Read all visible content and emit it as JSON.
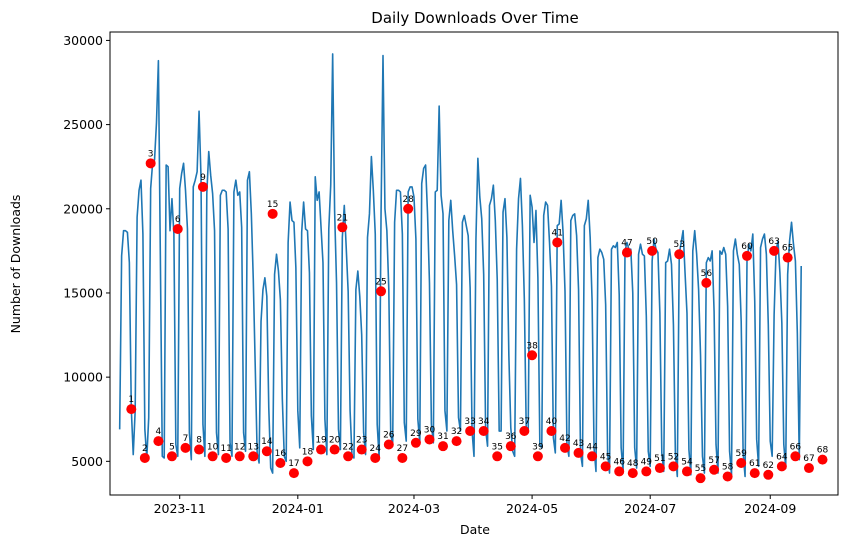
{
  "chart_data": {
    "type": "line",
    "title": "Daily Downloads Over Time",
    "xlabel": "Date",
    "ylabel": "Number of Downloads",
    "ylim": [
      3000,
      30500
    ],
    "xlim": [
      "2023-09-26",
      "2024-10-06"
    ],
    "y_ticks": [
      5000,
      10000,
      15000,
      20000,
      25000,
      30000
    ],
    "x_ticks": [
      "2023-11",
      "2024-01",
      "2024-03",
      "2024-05",
      "2024-07",
      "2024-09"
    ],
    "x_tick_dates": [
      "2023-11-01",
      "2024-01-01",
      "2024-03-01",
      "2024-05-01",
      "2024-07-01",
      "2024-09-01"
    ],
    "grid": false,
    "line_color": "#1f77b4",
    "marker_color": "#ff0000",
    "series": [
      {
        "x_start": "2023-10-01",
        "values": [
          6900,
          17200,
          18700,
          18700,
          18600,
          16800,
          8100,
          5400,
          8000,
          19500,
          21100,
          21700,
          18500,
          6900,
          5200,
          7600,
          21200,
          22700,
          22900,
          25100,
          28800,
          17200,
          5300,
          5200,
          22600,
          22500,
          18700,
          20600,
          18500,
          6000,
          5300,
          21200,
          22100,
          22700,
          21100,
          18800,
          6700,
          5100,
          21300,
          21700,
          22200,
          25800,
          21900,
          7200,
          5300,
          20900,
          23400,
          22000,
          20900,
          18700,
          6700,
          5400,
          20800,
          21100,
          21100,
          21000,
          18800,
          6100,
          5300,
          21000,
          21700,
          20800,
          21000,
          18900,
          6700,
          5600,
          21700,
          22200,
          19700,
          15800,
          10700,
          5500,
          4900,
          13300,
          15200,
          15900,
          14800,
          8200,
          4600,
          4300,
          16100,
          17300,
          16300,
          14600,
          8700,
          5300,
          5000,
          18000,
          20400,
          19300,
          19200,
          16500,
          8000,
          5800,
          18600,
          20400,
          18800,
          18700,
          16200,
          7700,
          5700,
          21900,
          20500,
          21000,
          18900,
          16800,
          7500,
          5400,
          18800,
          21400,
          29200,
          19900,
          15600,
          6900,
          5700,
          18300,
          20200,
          17700,
          15100,
          8000,
          5300,
          5200,
          15200,
          16300,
          14800,
          12500,
          6700,
          5400,
          18300,
          19700,
          23100,
          21100,
          18500,
          7200,
          5200,
          19800,
          29100,
          20000,
          18700,
          15200,
          6600,
          6000,
          19200,
          21100,
          21100,
          21000,
          18500,
          7300,
          6200,
          21000,
          21300,
          21300,
          20700,
          18200,
          7500,
          6100,
          21500,
          22400,
          22600,
          19700,
          15600,
          7200,
          6100,
          21000,
          21100,
          26100,
          20800,
          19700,
          8000,
          6800,
          19300,
          20500,
          18700,
          17200,
          15500,
          7600,
          6800,
          19200,
          19600,
          19000,
          18400,
          15300,
          6800,
          5300,
          18200,
          23000,
          20700,
          19400,
          16100,
          6900,
          5900,
          20200,
          20600,
          21400,
          19300,
          15800,
          6800,
          6800,
          19800,
          20600,
          18300,
          11300,
          7000,
          5600,
          5300,
          17600,
          20600,
          21800,
          19000,
          14600,
          6700,
          6800,
          20800,
          20100,
          18000,
          19900,
          15900,
          6000,
          5800,
          19600,
          20400,
          20200,
          18000,
          15400,
          6400,
          5500,
          19000,
          19100,
          20500,
          18600,
          15100,
          6000,
          5300,
          19300,
          19600,
          19700,
          18400,
          15200,
          5500,
          4700,
          19000,
          19400,
          20500,
          18300,
          14500,
          5800,
          4400,
          17100,
          17600,
          17400,
          17000,
          14300,
          5500,
          4300,
          17600,
          17800,
          17700,
          18000,
          14900,
          5800,
          4400,
          17500,
          18000,
          17600,
          17600,
          15000,
          5800,
          4600,
          17300,
          17900,
          17300,
          17200,
          13600,
          5600,
          4700,
          16900,
          18200,
          17600,
          17400,
          13800,
          5500,
          4400,
          16800,
          16900,
          17600,
          16700,
          13100,
          5500,
          4100,
          17300,
          18000,
          18700,
          16200,
          13800,
          5700,
          4200,
          17500,
          18700,
          17300,
          15200,
          11300,
          5300,
          4300,
          16800,
          17100,
          16900,
          17500,
          13900,
          6000,
          4300,
          17500,
          17300,
          17700,
          17300,
          14200,
          5600,
          4200,
          17500,
          18200,
          17300,
          16700,
          13300,
          5500,
          4100,
          16900,
          17900,
          17500,
          18500,
          14500,
          6300,
          4700,
          17700,
          18200,
          18500,
          17300,
          13100,
          6200,
          5300,
          13700,
          17500,
          18100,
          16200,
          13200,
          6000,
          4600,
          16100,
          18100,
          19200,
          17900,
          16900,
          12600,
          5100,
          16600
        ]
      }
    ],
    "annotated_points": [
      {
        "label": "1",
        "x": "2023-10-07",
        "y": 8100
      },
      {
        "label": "2",
        "x": "2023-10-14",
        "y": 5200
      },
      {
        "label": "3",
        "x": "2023-10-17",
        "y": 22700
      },
      {
        "label": "4",
        "x": "2023-10-21",
        "y": 6200
      },
      {
        "label": "5",
        "x": "2023-10-28",
        "y": 5300
      },
      {
        "label": "6",
        "x": "2023-10-31",
        "y": 18800
      },
      {
        "label": "7",
        "x": "2023-11-04",
        "y": 5800
      },
      {
        "label": "8",
        "x": "2023-11-11",
        "y": 5700
      },
      {
        "label": "9",
        "x": "2023-11-13",
        "y": 21300
      },
      {
        "label": "10",
        "x": "2023-11-18",
        "y": 5300
      },
      {
        "label": "11",
        "x": "2023-11-25",
        "y": 5200
      },
      {
        "label": "12",
        "x": "2023-12-02",
        "y": 5300
      },
      {
        "label": "13",
        "x": "2023-12-09",
        "y": 5300
      },
      {
        "label": "14",
        "x": "2023-12-16",
        "y": 5600
      },
      {
        "label": "15",
        "x": "2023-12-19",
        "y": 19700
      },
      {
        "label": "16",
        "x": "2023-12-23",
        "y": 4900
      },
      {
        "label": "17",
        "x": "2023-12-30",
        "y": 4300
      },
      {
        "label": "18",
        "x": "2024-01-06",
        "y": 5000
      },
      {
        "label": "19",
        "x": "2024-01-13",
        "y": 5700
      },
      {
        "label": "20",
        "x": "2024-01-20",
        "y": 5700
      },
      {
        "label": "21",
        "x": "2024-01-24",
        "y": 18900
      },
      {
        "label": "22",
        "x": "2024-01-27",
        "y": 5300
      },
      {
        "label": "23",
        "x": "2024-02-03",
        "y": 5700
      },
      {
        "label": "24",
        "x": "2024-02-10",
        "y": 5200
      },
      {
        "label": "25",
        "x": "2024-02-13",
        "y": 15100
      },
      {
        "label": "26",
        "x": "2024-02-17",
        "y": 6000
      },
      {
        "label": "27",
        "x": "2024-02-24",
        "y": 5200
      },
      {
        "label": "28",
        "x": "2024-02-27",
        "y": 20000
      },
      {
        "label": "29",
        "x": "2024-03-02",
        "y": 6100
      },
      {
        "label": "30",
        "x": "2024-03-09",
        "y": 6300
      },
      {
        "label": "31",
        "x": "2024-03-16",
        "y": 5900
      },
      {
        "label": "32",
        "x": "2024-03-23",
        "y": 6200
      },
      {
        "label": "33",
        "x": "2024-03-30",
        "y": 6800
      },
      {
        "label": "34",
        "x": "2024-04-06",
        "y": 6800
      },
      {
        "label": "35",
        "x": "2024-04-13",
        "y": 5300
      },
      {
        "label": "36",
        "x": "2024-04-20",
        "y": 5900
      },
      {
        "label": "37",
        "x": "2024-04-27",
        "y": 6800
      },
      {
        "label": "38",
        "x": "2024-05-01",
        "y": 11300
      },
      {
        "label": "39",
        "x": "2024-05-04",
        "y": 5300
      },
      {
        "label": "40",
        "x": "2024-05-11",
        "y": 6800
      },
      {
        "label": "41",
        "x": "2024-05-14",
        "y": 18000
      },
      {
        "label": "42",
        "x": "2024-05-18",
        "y": 5800
      },
      {
        "label": "43",
        "x": "2024-05-25",
        "y": 5500
      },
      {
        "label": "44",
        "x": "2024-06-01",
        "y": 5300
      },
      {
        "label": "45",
        "x": "2024-06-08",
        "y": 4700
      },
      {
        "label": "46",
        "x": "2024-06-15",
        "y": 4400
      },
      {
        "label": "47",
        "x": "2024-06-19",
        "y": 17400
      },
      {
        "label": "48",
        "x": "2024-06-22",
        "y": 4300
      },
      {
        "label": "49",
        "x": "2024-06-29",
        "y": 4400
      },
      {
        "label": "50",
        "x": "2024-07-02",
        "y": 17500
      },
      {
        "label": "51",
        "x": "2024-07-06",
        "y": 4600
      },
      {
        "label": "52",
        "x": "2024-07-13",
        "y": 4700
      },
      {
        "label": "53",
        "x": "2024-07-16",
        "y": 17300
      },
      {
        "label": "54",
        "x": "2024-07-20",
        "y": 4400
      },
      {
        "label": "55",
        "x": "2024-07-27",
        "y": 4000
      },
      {
        "label": "56",
        "x": "2024-07-30",
        "y": 15600
      },
      {
        "label": "57",
        "x": "2024-08-03",
        "y": 4500
      },
      {
        "label": "58",
        "x": "2024-08-10",
        "y": 4100
      },
      {
        "label": "59",
        "x": "2024-08-17",
        "y": 4900
      },
      {
        "label": "60",
        "x": "2024-08-20",
        "y": 17200
      },
      {
        "label": "61",
        "x": "2024-08-24",
        "y": 4300
      },
      {
        "label": "62",
        "x": "2024-08-31",
        "y": 4200
      },
      {
        "label": "63",
        "x": "2024-09-03",
        "y": 17500
      },
      {
        "label": "64",
        "x": "2024-09-07",
        "y": 4700
      },
      {
        "label": "65",
        "x": "2024-09-10",
        "y": 17100
      },
      {
        "label": "66",
        "x": "2024-09-14",
        "y": 5300
      },
      {
        "label": "67",
        "x": "2024-09-21",
        "y": 4600
      },
      {
        "label": "68",
        "x": "2024-09-28",
        "y": 5100
      }
    ]
  }
}
